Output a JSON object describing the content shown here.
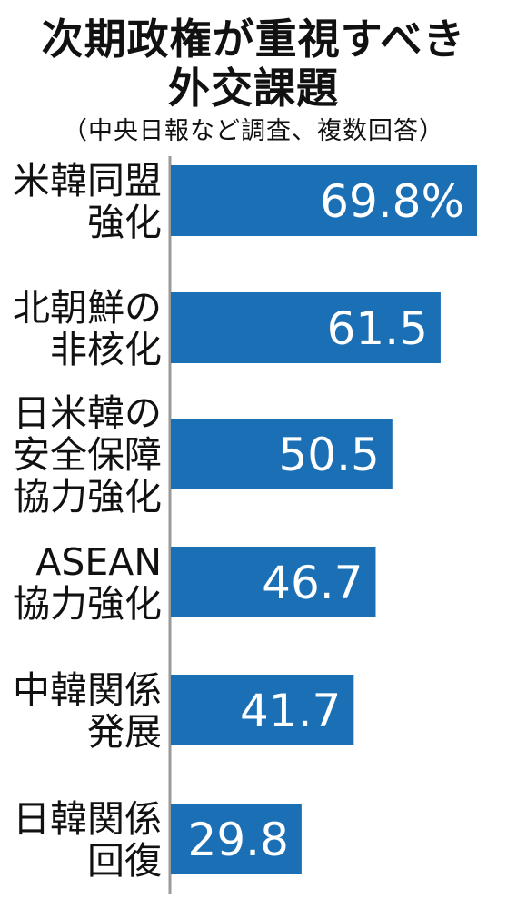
{
  "chart_data": {
    "type": "bar",
    "orientation": "horizontal",
    "title_lines": [
      "次期政権が重視すべき",
      "外交課題"
    ],
    "subtitle": "（中央日報など調査、複数回答）",
    "categories": [
      [
        "米韓同盟",
        "強化"
      ],
      [
        "北朝鮮の",
        "非核化"
      ],
      [
        "日米韓の",
        "安全保障",
        "協力強化"
      ],
      [
        "ASEAN",
        "協力強化"
      ],
      [
        "中韓関係",
        "発展"
      ],
      [
        "日韓関係",
        "回復"
      ]
    ],
    "values": [
      69.8,
      61.5,
      50.5,
      46.7,
      41.7,
      29.8
    ],
    "value_labels": [
      "69.8%",
      "61.5",
      "50.5",
      "46.7",
      "41.7",
      "29.8"
    ],
    "unit": "%",
    "bar_color": "#1b6fb5",
    "axis_color": "#9a9a9a"
  }
}
